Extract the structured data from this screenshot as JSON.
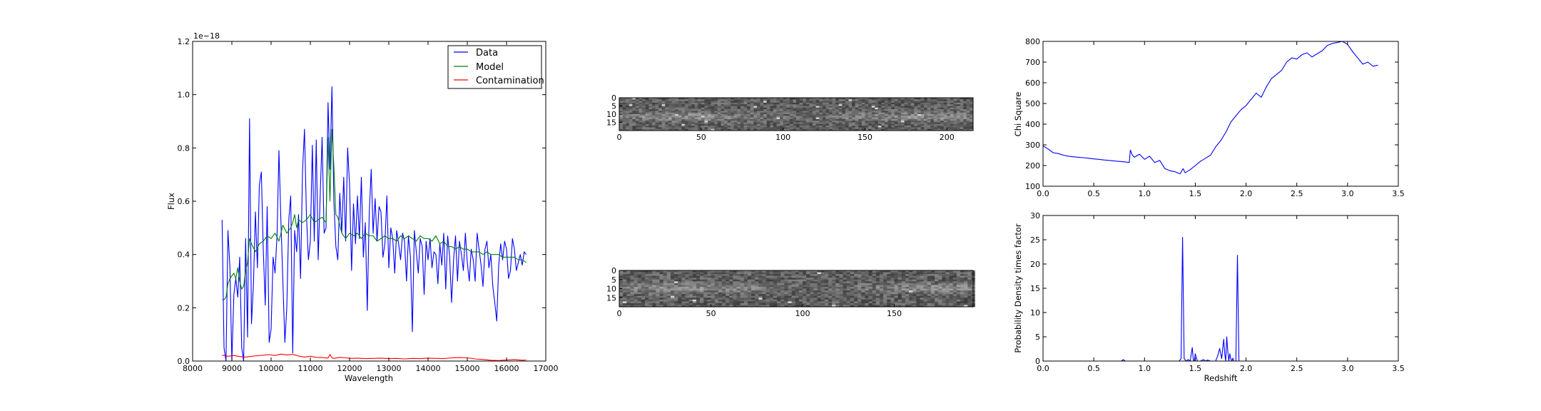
{
  "colors": {
    "data": "#0000ff",
    "model": "#008000",
    "contamination": "#ff0000",
    "axes": "#000000"
  },
  "chart_data": [
    {
      "type": "line",
      "panel": "spectrum",
      "xlabel": "Wavelength",
      "ylabel": "Flux",
      "offset_text": "1e−18",
      "xlim": [
        8000,
        17000
      ],
      "ylim": [
        0,
        1.2
      ],
      "xticks": [
        8000,
        9000,
        10000,
        11000,
        12000,
        13000,
        14000,
        15000,
        16000,
        17000
      ],
      "yticks": [
        0.0,
        0.2,
        0.4,
        0.6,
        0.8,
        1.0,
        1.2
      ],
      "legend_position": "top-right",
      "series": [
        {
          "name": "Data",
          "color_key": "data",
          "x": [
            8750,
            8800,
            8850,
            8900,
            8950,
            9000,
            9050,
            9100,
            9150,
            9200,
            9250,
            9300,
            9350,
            9400,
            9450,
            9500,
            9550,
            9600,
            9650,
            9700,
            9750,
            9800,
            9850,
            9900,
            9950,
            10000,
            10050,
            10100,
            10150,
            10200,
            10250,
            10300,
            10350,
            10400,
            10450,
            10500,
            10550,
            10600,
            10650,
            10700,
            10750,
            10800,
            10850,
            10900,
            10950,
            11000,
            11050,
            11100,
            11150,
            11200,
            11250,
            11300,
            11350,
            11400,
            11450,
            11500,
            11550,
            11600,
            11650,
            11700,
            11750,
            11800,
            11850,
            11900,
            11950,
            12000,
            12050,
            12100,
            12150,
            12200,
            12250,
            12300,
            12350,
            12400,
            12450,
            12500,
            12550,
            12600,
            12650,
            12700,
            12750,
            12800,
            12850,
            12900,
            12950,
            13000,
            13050,
            13100,
            13150,
            13200,
            13250,
            13300,
            13350,
            13400,
            13450,
            13500,
            13550,
            13600,
            13650,
            13700,
            13750,
            13800,
            13850,
            13900,
            13950,
            14000,
            14050,
            14100,
            14150,
            14200,
            14250,
            14300,
            14350,
            14400,
            14450,
            14500,
            14550,
            14600,
            14650,
            14700,
            14750,
            14800,
            14850,
            14900,
            14950,
            15000,
            15050,
            15100,
            15150,
            15200,
            15250,
            15300,
            15350,
            15400,
            15450,
            15500,
            15550,
            15600,
            15650,
            15700,
            15750,
            15800,
            15850,
            15900,
            15950,
            16000,
            16050,
            16100,
            16150,
            16200,
            16250,
            16300,
            16350,
            16400,
            16450,
            16500
          ],
          "y": [
            0.53,
            0.05,
            0.0,
            0.49,
            0.35,
            0.0,
            0.25,
            0.31,
            0.24,
            0.39,
            0.05,
            0.0,
            0.46,
            0.09,
            0.91,
            0.14,
            0.29,
            0.56,
            0.35,
            0.66,
            0.71,
            0.42,
            0.21,
            0.58,
            0.07,
            0.12,
            0.39,
            0.33,
            0.47,
            0.79,
            0.52,
            0.3,
            0.07,
            0.2,
            0.53,
            0.62,
            0.03,
            0.49,
            0.41,
            0.55,
            0.31,
            0.71,
            0.87,
            0.55,
            0.38,
            0.45,
            0.81,
            0.45,
            0.83,
            0.38,
            0.62,
            0.84,
            0.48,
            0.5,
            0.97,
            0.72,
            1.03,
            0.6,
            0.43,
            0.38,
            0.63,
            0.48,
            0.69,
            0.45,
            0.8,
            0.66,
            0.34,
            0.59,
            0.44,
            0.62,
            0.46,
            0.69,
            0.39,
            0.52,
            0.19,
            0.55,
            0.72,
            0.48,
            0.61,
            0.45,
            0.58,
            0.56,
            0.39,
            0.44,
            0.62,
            0.35,
            0.5,
            0.46,
            0.33,
            0.49,
            0.44,
            0.38,
            0.48,
            0.45,
            0.3,
            0.47,
            0.39,
            0.11,
            0.49,
            0.41,
            0.33,
            0.46,
            0.43,
            0.25,
            0.45,
            0.38,
            0.46,
            0.35,
            0.41,
            0.4,
            0.29,
            0.44,
            0.36,
            0.48,
            0.27,
            0.47,
            0.39,
            0.22,
            0.38,
            0.47,
            0.3,
            0.45,
            0.4,
            0.34,
            0.48,
            0.37,
            0.3,
            0.42,
            0.38,
            0.3,
            0.48,
            0.42,
            0.36,
            0.28,
            0.42,
            0.45,
            0.35,
            0.4,
            0.28,
            0.22,
            0.15,
            0.36,
            0.44,
            0.38,
            0.45,
            0.42,
            0.31,
            0.34,
            0.46,
            0.42,
            0.34,
            0.37,
            0.4,
            0.36,
            0.41,
            0.4
          ],
          "note_none": ""
        },
        {
          "name": "Model",
          "color_key": "model",
          "x": [
            8750,
            8800,
            8850,
            8900,
            8950,
            9000,
            9050,
            9100,
            9150,
            9200,
            9250,
            9300,
            9350,
            9400,
            9450,
            9500,
            9600,
            9700,
            9800,
            9900,
            10000,
            10100,
            10200,
            10300,
            10400,
            10500,
            10550,
            10600,
            10650,
            10700,
            10800,
            10900,
            11000,
            11100,
            11200,
            11300,
            11400,
            11450,
            11500,
            11550,
            11600,
            11650,
            11700,
            11750,
            11800,
            11900,
            12000,
            12100,
            12200,
            12300,
            12400,
            12500,
            12600,
            12700,
            12800,
            12900,
            13000,
            13100,
            13200,
            13300,
            13400,
            13500,
            13600,
            13700,
            13800,
            13900,
            14000,
            14100,
            14200,
            14300,
            14400,
            14500,
            14600,
            14700,
            14800,
            14900,
            15000,
            15100,
            15200,
            15300,
            15400,
            15500,
            15600,
            15700,
            15800,
            15900,
            16000,
            16100,
            16200,
            16300,
            16400,
            16500
          ],
          "y": [
            0.23,
            0.23,
            0.24,
            0.29,
            0.31,
            0.32,
            0.33,
            0.31,
            0.35,
            0.3,
            0.27,
            0.28,
            0.34,
            0.37,
            0.46,
            0.44,
            0.41,
            0.44,
            0.45,
            0.47,
            0.46,
            0.48,
            0.45,
            0.51,
            0.48,
            0.5,
            0.52,
            0.55,
            0.5,
            0.53,
            0.52,
            0.53,
            0.55,
            0.52,
            0.53,
            0.54,
            0.52,
            0.84,
            0.6,
            0.87,
            0.73,
            0.55,
            0.54,
            0.51,
            0.48,
            0.46,
            0.48,
            0.47,
            0.48,
            0.46,
            0.48,
            0.47,
            0.47,
            0.45,
            0.46,
            0.47,
            0.46,
            0.46,
            0.45,
            0.47,
            0.46,
            0.47,
            0.46,
            0.45,
            0.47,
            0.46,
            0.46,
            0.45,
            0.47,
            0.44,
            0.45,
            0.43,
            0.43,
            0.42,
            0.43,
            0.42,
            0.42,
            0.41,
            0.41,
            0.41,
            0.4,
            0.41,
            0.4,
            0.4,
            0.4,
            0.39,
            0.39,
            0.39,
            0.39,
            0.38,
            0.38,
            0.37
          ]
        },
        {
          "name": "Contamination",
          "color_key": "contamination",
          "x": [
            8750,
            8900,
            9050,
            9200,
            9350,
            9500,
            9650,
            9800,
            9950,
            10100,
            10250,
            10400,
            10550,
            10700,
            10850,
            11000,
            11150,
            11300,
            11450,
            11500,
            11550,
            11600,
            11750,
            11900,
            12050,
            12200,
            12400,
            12600,
            12800,
            13000,
            13200,
            13400,
            13600,
            13800,
            14000,
            14200,
            14400,
            14600,
            14800,
            15000,
            15200,
            15400,
            15600,
            15800,
            16000,
            16200,
            16400,
            16500
          ],
          "y": [
            0.022,
            0.018,
            0.021,
            0.017,
            0.015,
            0.018,
            0.02,
            0.022,
            0.024,
            0.021,
            0.026,
            0.023,
            0.025,
            0.019,
            0.015,
            0.018,
            0.014,
            0.013,
            0.011,
            0.025,
            0.012,
            0.01,
            0.014,
            0.012,
            0.01,
            0.011,
            0.009,
            0.01,
            0.011,
            0.009,
            0.01,
            0.008,
            0.01,
            0.009,
            0.011,
            0.01,
            0.009,
            0.012,
            0.013,
            0.012,
            0.008,
            0.006,
            0.003,
            0.002,
            0.004,
            0.006,
            0.003,
            0.004
          ]
        }
      ]
    },
    {
      "type": "heatmap",
      "panel": "spectrum-2d-top",
      "xlim": [
        0,
        216
      ],
      "ylim": [
        0,
        20
      ],
      "xticks": [
        0,
        50,
        100,
        150,
        200
      ],
      "yticks": [
        0,
        5,
        10,
        15
      ],
      "cols": 216,
      "rows": 20,
      "trace_row": 11
    },
    {
      "type": "heatmap",
      "panel": "spectrum-2d-bottom",
      "xlim": [
        0,
        193
      ],
      "ylim": [
        0,
        20
      ],
      "xticks": [
        0,
        50,
        100,
        150
      ],
      "yticks": [
        0,
        5,
        10,
        15
      ],
      "cols": 193,
      "rows": 20,
      "trace_row": 9
    },
    {
      "type": "line",
      "panel": "chi-square",
      "xlabel": "",
      "ylabel": "Chi Square",
      "xlim": [
        0.0,
        3.5
      ],
      "ylim": [
        100,
        800
      ],
      "xticks": [
        0.0,
        0.5,
        1.0,
        1.5,
        2.0,
        2.5,
        3.0,
        3.5
      ],
      "yticks": [
        100,
        200,
        300,
        400,
        500,
        600,
        700,
        800
      ],
      "series": [
        {
          "color_key": "data",
          "x": [
            0.0,
            0.05,
            0.1,
            0.15,
            0.2,
            0.25,
            0.3,
            0.35,
            0.4,
            0.45,
            0.5,
            0.55,
            0.6,
            0.65,
            0.7,
            0.75,
            0.8,
            0.85,
            0.86,
            0.88,
            0.9,
            0.95,
            1.0,
            1.05,
            1.1,
            1.15,
            1.2,
            1.25,
            1.3,
            1.35,
            1.38,
            1.4,
            1.45,
            1.5,
            1.55,
            1.6,
            1.65,
            1.7,
            1.75,
            1.8,
            1.85,
            1.9,
            1.95,
            2.0,
            2.05,
            2.1,
            2.15,
            2.2,
            2.25,
            2.3,
            2.35,
            2.4,
            2.45,
            2.5,
            2.55,
            2.6,
            2.65,
            2.7,
            2.75,
            2.8,
            2.85,
            2.9,
            2.95,
            3.0,
            3.05,
            3.1,
            3.15,
            3.2,
            3.25,
            3.3
          ],
          "y": [
            295,
            280,
            262,
            258,
            250,
            245,
            242,
            240,
            238,
            235,
            232,
            230,
            227,
            225,
            222,
            220,
            218,
            215,
            275,
            250,
            240,
            255,
            230,
            245,
            215,
            225,
            185,
            175,
            170,
            160,
            185,
            165,
            180,
            200,
            220,
            235,
            250,
            290,
            320,
            360,
            410,
            440,
            470,
            490,
            520,
            550,
            530,
            580,
            620,
            640,
            660,
            700,
            720,
            715,
            735,
            745,
            725,
            740,
            755,
            780,
            790,
            795,
            800,
            785,
            750,
            720,
            690,
            700,
            680,
            685
          ]
        }
      ]
    },
    {
      "type": "line",
      "panel": "probability-density",
      "xlabel": "Redshift",
      "ylabel": "Probability Density times factor",
      "xlim": [
        0.0,
        3.5
      ],
      "ylim": [
        0,
        30
      ],
      "xticks": [
        0.0,
        0.5,
        1.0,
        1.5,
        2.0,
        2.5,
        3.0,
        3.5
      ],
      "yticks": [
        0,
        5,
        10,
        15,
        20,
        25,
        30
      ],
      "series": [
        {
          "color_key": "data",
          "x": [
            0.0,
            0.7,
            0.77,
            0.79,
            0.81,
            1.2,
            1.3,
            1.34,
            1.36,
            1.375,
            1.39,
            1.41,
            1.43,
            1.45,
            1.47,
            1.48,
            1.49,
            1.5,
            1.52,
            1.55,
            1.58,
            1.6,
            1.62,
            1.65,
            1.7,
            1.72,
            1.74,
            1.76,
            1.78,
            1.79,
            1.8,
            1.81,
            1.82,
            1.83,
            1.84,
            1.85,
            1.86,
            1.87,
            1.88,
            1.9,
            1.915,
            1.93,
            1.95,
            2.0,
            2.5,
            3.0,
            3.3
          ],
          "y": [
            0,
            0,
            0,
            0.3,
            0,
            0,
            0,
            0,
            0.5,
            25.5,
            0.5,
            0,
            0.3,
            0,
            2.8,
            0.3,
            0,
            1.5,
            0,
            0,
            0.3,
            0,
            0.2,
            0,
            0,
            1.0,
            2.6,
            0.5,
            4.5,
            1.5,
            0,
            5.0,
            2.0,
            0,
            1.5,
            0.5,
            0,
            0.6,
            0,
            0,
            21.8,
            0,
            0,
            0,
            0,
            0,
            0
          ]
        }
      ]
    }
  ]
}
